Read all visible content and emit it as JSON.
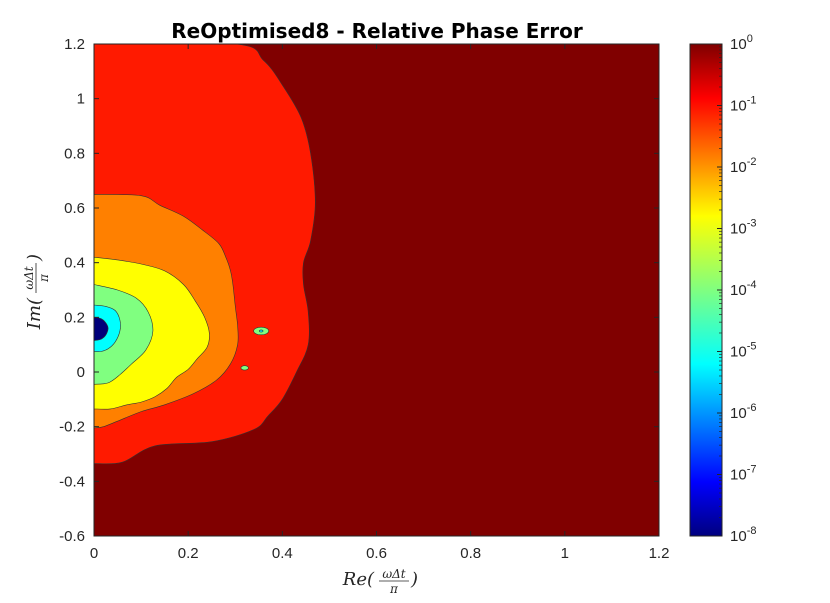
{
  "chart_data": {
    "type": "heatmap",
    "subtype": "filled-contour",
    "title": "ReOptimised8 - Relative Phase Error",
    "xlabel": {
      "prefix": "Re(",
      "frac_num": "ωΔt",
      "frac_den": "π",
      "suffix": ")"
    },
    "ylabel": {
      "prefix": "Im(",
      "frac_num": "ωΔt",
      "frac_den": "π",
      "suffix": ")"
    },
    "xlim": [
      0,
      1.2
    ],
    "ylim": [
      -0.6,
      1.2
    ],
    "x_ticks": [
      0,
      0.2,
      0.4,
      0.6,
      0.8,
      1,
      1.2
    ],
    "x_tick_labels": [
      "0",
      "0.2",
      "0.4",
      "0.6",
      "0.8",
      "1",
      "1.2"
    ],
    "y_ticks": [
      1.2,
      1,
      0.8,
      0.6,
      0.4,
      0.2,
      0,
      -0.2,
      -0.4,
      -0.6
    ],
    "y_tick_labels": [
      "1.2",
      "1",
      "0.8",
      "0.6",
      "0.4",
      "0.2",
      "0",
      "-0.2",
      "-0.4",
      "-0.6"
    ],
    "colorbar": {
      "scale": "log",
      "range": [
        1e-08,
        1
      ],
      "colormap": "jet",
      "ticks": [
        {
          "value": 1,
          "base": "10",
          "exp": "0"
        },
        {
          "value": 0.1,
          "base": "10",
          "exp": "-1"
        },
        {
          "value": 0.01,
          "base": "10",
          "exp": "-2"
        },
        {
          "value": 0.001,
          "base": "10",
          "exp": "-3"
        },
        {
          "value": 0.0001,
          "base": "10",
          "exp": "-4"
        },
        {
          "value": 1e-05,
          "base": "10",
          "exp": "-5"
        },
        {
          "value": 1e-06,
          "base": "10",
          "exp": "-6"
        },
        {
          "value": 1e-07,
          "base": "10",
          "exp": "-7"
        },
        {
          "value": 1e-08,
          "base": "10",
          "exp": "-8"
        }
      ]
    },
    "regions": [
      {
        "level": "1e0",
        "color": "#800000",
        "boundary": "background"
      },
      {
        "level": "1e-1",
        "color": "#ff1a00",
        "boundary": [
          [
            0,
            1.2
          ],
          [
            0.3,
            1.2
          ],
          [
            0.36,
            1.14
          ],
          [
            0.4,
            1.05
          ],
          [
            0.44,
            0.93
          ],
          [
            0.46,
            0.8
          ],
          [
            0.47,
            0.62
          ],
          [
            0.46,
            0.48
          ],
          [
            0.445,
            0.4
          ],
          [
            0.445,
            0.32
          ],
          [
            0.455,
            0.22
          ],
          [
            0.455,
            0.1
          ],
          [
            0.43,
            0.0
          ],
          [
            0.4,
            -0.1
          ],
          [
            0.37,
            -0.16
          ],
          [
            0.34,
            -0.21
          ],
          [
            0.25,
            -0.255
          ],
          [
            0.13,
            -0.27
          ],
          [
            0.06,
            -0.33
          ],
          [
            0.0,
            -0.335
          ]
        ]
      },
      {
        "level": "1e-2",
        "color": "#ff8000",
        "boundary": [
          [
            0,
            0.65
          ],
          [
            0.1,
            0.645
          ],
          [
            0.14,
            0.61
          ],
          [
            0.19,
            0.57
          ],
          [
            0.23,
            0.52
          ],
          [
            0.265,
            0.47
          ],
          [
            0.28,
            0.42
          ],
          [
            0.29,
            0.37
          ],
          [
            0.295,
            0.32
          ],
          [
            0.3,
            0.24
          ],
          [
            0.305,
            0.17
          ],
          [
            0.305,
            0.1
          ],
          [
            0.29,
            0.03
          ],
          [
            0.26,
            -0.03
          ],
          [
            0.21,
            -0.08
          ],
          [
            0.15,
            -0.12
          ],
          [
            0.1,
            -0.145
          ],
          [
            0.05,
            -0.18
          ],
          [
            0.02,
            -0.2
          ],
          [
            0.0,
            -0.205
          ]
        ]
      },
      {
        "level": "1e-3",
        "color": "#ffff00",
        "boundary": [
          [
            0,
            0.42
          ],
          [
            0.05,
            0.41
          ],
          [
            0.1,
            0.395
          ],
          [
            0.15,
            0.37
          ],
          [
            0.19,
            0.32
          ],
          [
            0.215,
            0.26
          ],
          [
            0.235,
            0.2
          ],
          [
            0.245,
            0.14
          ],
          [
            0.24,
            0.09
          ],
          [
            0.22,
            0.05
          ],
          [
            0.2,
            0.01
          ],
          [
            0.175,
            -0.02
          ],
          [
            0.155,
            -0.06
          ],
          [
            0.13,
            -0.09
          ],
          [
            0.1,
            -0.11
          ],
          [
            0.07,
            -0.12
          ],
          [
            0.035,
            -0.135
          ],
          [
            0.0,
            -0.135
          ]
        ]
      },
      {
        "level": "1e-4",
        "color": "#80ff80",
        "boundary": [
          [
            0,
            0.32
          ],
          [
            0.05,
            0.3
          ],
          [
            0.09,
            0.27
          ],
          [
            0.115,
            0.22
          ],
          [
            0.125,
            0.15
          ],
          [
            0.11,
            0.08
          ],
          [
            0.08,
            0.03
          ],
          [
            0.055,
            -0.01
          ],
          [
            0.03,
            -0.04
          ],
          [
            0.0,
            -0.045
          ]
        ]
      },
      {
        "level": "1e-5",
        "color": "#00ffff",
        "boundary": [
          [
            0,
            0.245
          ],
          [
            0.025,
            0.24
          ],
          [
            0.045,
            0.225
          ],
          [
            0.055,
            0.19
          ],
          [
            0.055,
            0.15
          ],
          [
            0.045,
            0.11
          ],
          [
            0.03,
            0.085
          ],
          [
            0.015,
            0.075
          ],
          [
            0,
            0.075
          ]
        ]
      },
      {
        "level": "1e-8",
        "color": "#00007a",
        "boundary": [
          [
            0,
            0.2
          ],
          [
            0.015,
            0.195
          ],
          [
            0.025,
            0.18
          ],
          [
            0.03,
            0.16
          ],
          [
            0.025,
            0.135
          ],
          [
            0.015,
            0.12
          ],
          [
            0,
            0.115
          ]
        ]
      }
    ],
    "islands": [
      {
        "cx": 0.355,
        "cy": 0.15,
        "rx": 0.016,
        "ry": 0.014,
        "color": "#80ff80"
      },
      {
        "cx": 0.355,
        "cy": 0.15,
        "rx": 0.004,
        "ry": 0.004,
        "color": "#00ffff"
      },
      {
        "cx": 0.32,
        "cy": 0.015,
        "rx": 0.008,
        "ry": 0.008,
        "color": "#80ff80"
      }
    ]
  }
}
